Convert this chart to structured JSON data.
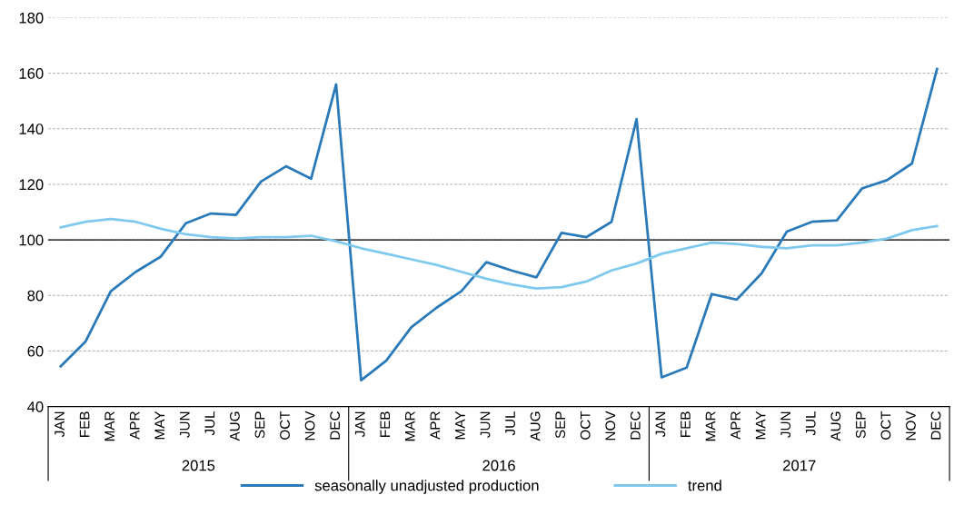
{
  "chart_data": {
    "type": "line",
    "categories": [
      "JAN",
      "FEB",
      "MAR",
      "APR",
      "MAY",
      "JUN",
      "JUL",
      "AUG",
      "SEP",
      "OCT",
      "NOV",
      "DEC",
      "JAN",
      "FEB",
      "MAR",
      "APR",
      "MAY",
      "JUN",
      "JUL",
      "AUG",
      "SEP",
      "OCT",
      "NOV",
      "DEC",
      "JAN",
      "FEB",
      "MAR",
      "APR",
      "MAY",
      "JUN",
      "JUL",
      "AUG",
      "SEP",
      "OCT",
      "NOV",
      "DEC"
    ],
    "series": [
      {
        "name": "seasonally unadjusted production",
        "color": "#2a7ab9",
        "values": [
          54.5,
          63.5,
          81.5,
          88.5,
          94,
          106,
          109.5,
          109,
          121,
          126.5,
          122,
          156,
          49.5,
          56.5,
          68.5,
          75.5,
          81.5,
          92,
          89,
          86.5,
          102.5,
          101,
          106.5,
          143.5,
          50.5,
          54,
          80.5,
          78.5,
          88,
          103,
          106.5,
          107,
          118.5,
          121.5,
          127.5,
          161.5
        ]
      },
      {
        "name": "trend",
        "color": "#7fc9ef",
        "values": [
          104.5,
          106.5,
          107.5,
          106.5,
          104,
          102,
          101,
          100.5,
          101,
          101,
          101.5,
          99.5,
          97,
          95,
          93,
          91,
          88.5,
          86,
          84,
          82.5,
          83,
          85,
          89,
          91.5,
          95,
          97,
          99,
          98.5,
          97.5,
          97,
          98,
          98,
          99,
          100.5,
          103.5,
          105
        ]
      }
    ],
    "annotations": [
      "2015",
      "2016",
      "2017"
    ],
    "ylim": [
      40,
      180
    ],
    "yticks": [
      40,
      60,
      80,
      100,
      120,
      140,
      160,
      180
    ],
    "ref_lines": [
      {
        "axis": "y",
        "value": 100,
        "color": "#000000"
      }
    ],
    "grid": "y",
    "legend": "bottom",
    "marker": "none",
    "line_style": "solid"
  }
}
